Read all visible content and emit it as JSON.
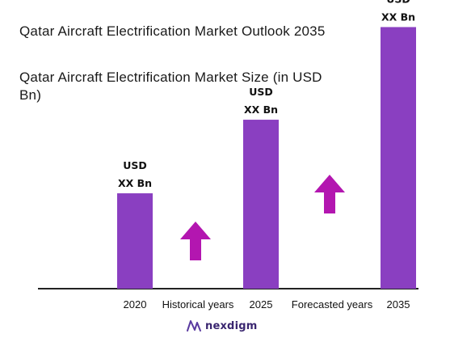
{
  "header": {
    "title": "Qatar Aircraft Electrification Market Outlook 2035",
    "subtitle": "Qatar Aircraft Electrification Market Size (in USD Bn)"
  },
  "chart_data": {
    "type": "bar",
    "categories": [
      "2020",
      "2025",
      "2035"
    ],
    "values": [
      0.35,
      0.62,
      0.96
    ],
    "value_labels": [
      [
        "USD",
        "XX Bn"
      ],
      [
        "USD",
        "XX Bn"
      ],
      [
        "USD",
        "XX Bn"
      ]
    ],
    "period_labels": [
      "Historical years",
      "Forecasted years"
    ],
    "ylim": [
      0,
      1
    ],
    "grid": false,
    "bar_color": "#8a3fc1",
    "arrow_color": "#b316b0",
    "axis_color": "#222222"
  },
  "footer": {
    "logo_icon": "nexdigm-logo-icon",
    "logo_text": "nexdigm"
  }
}
